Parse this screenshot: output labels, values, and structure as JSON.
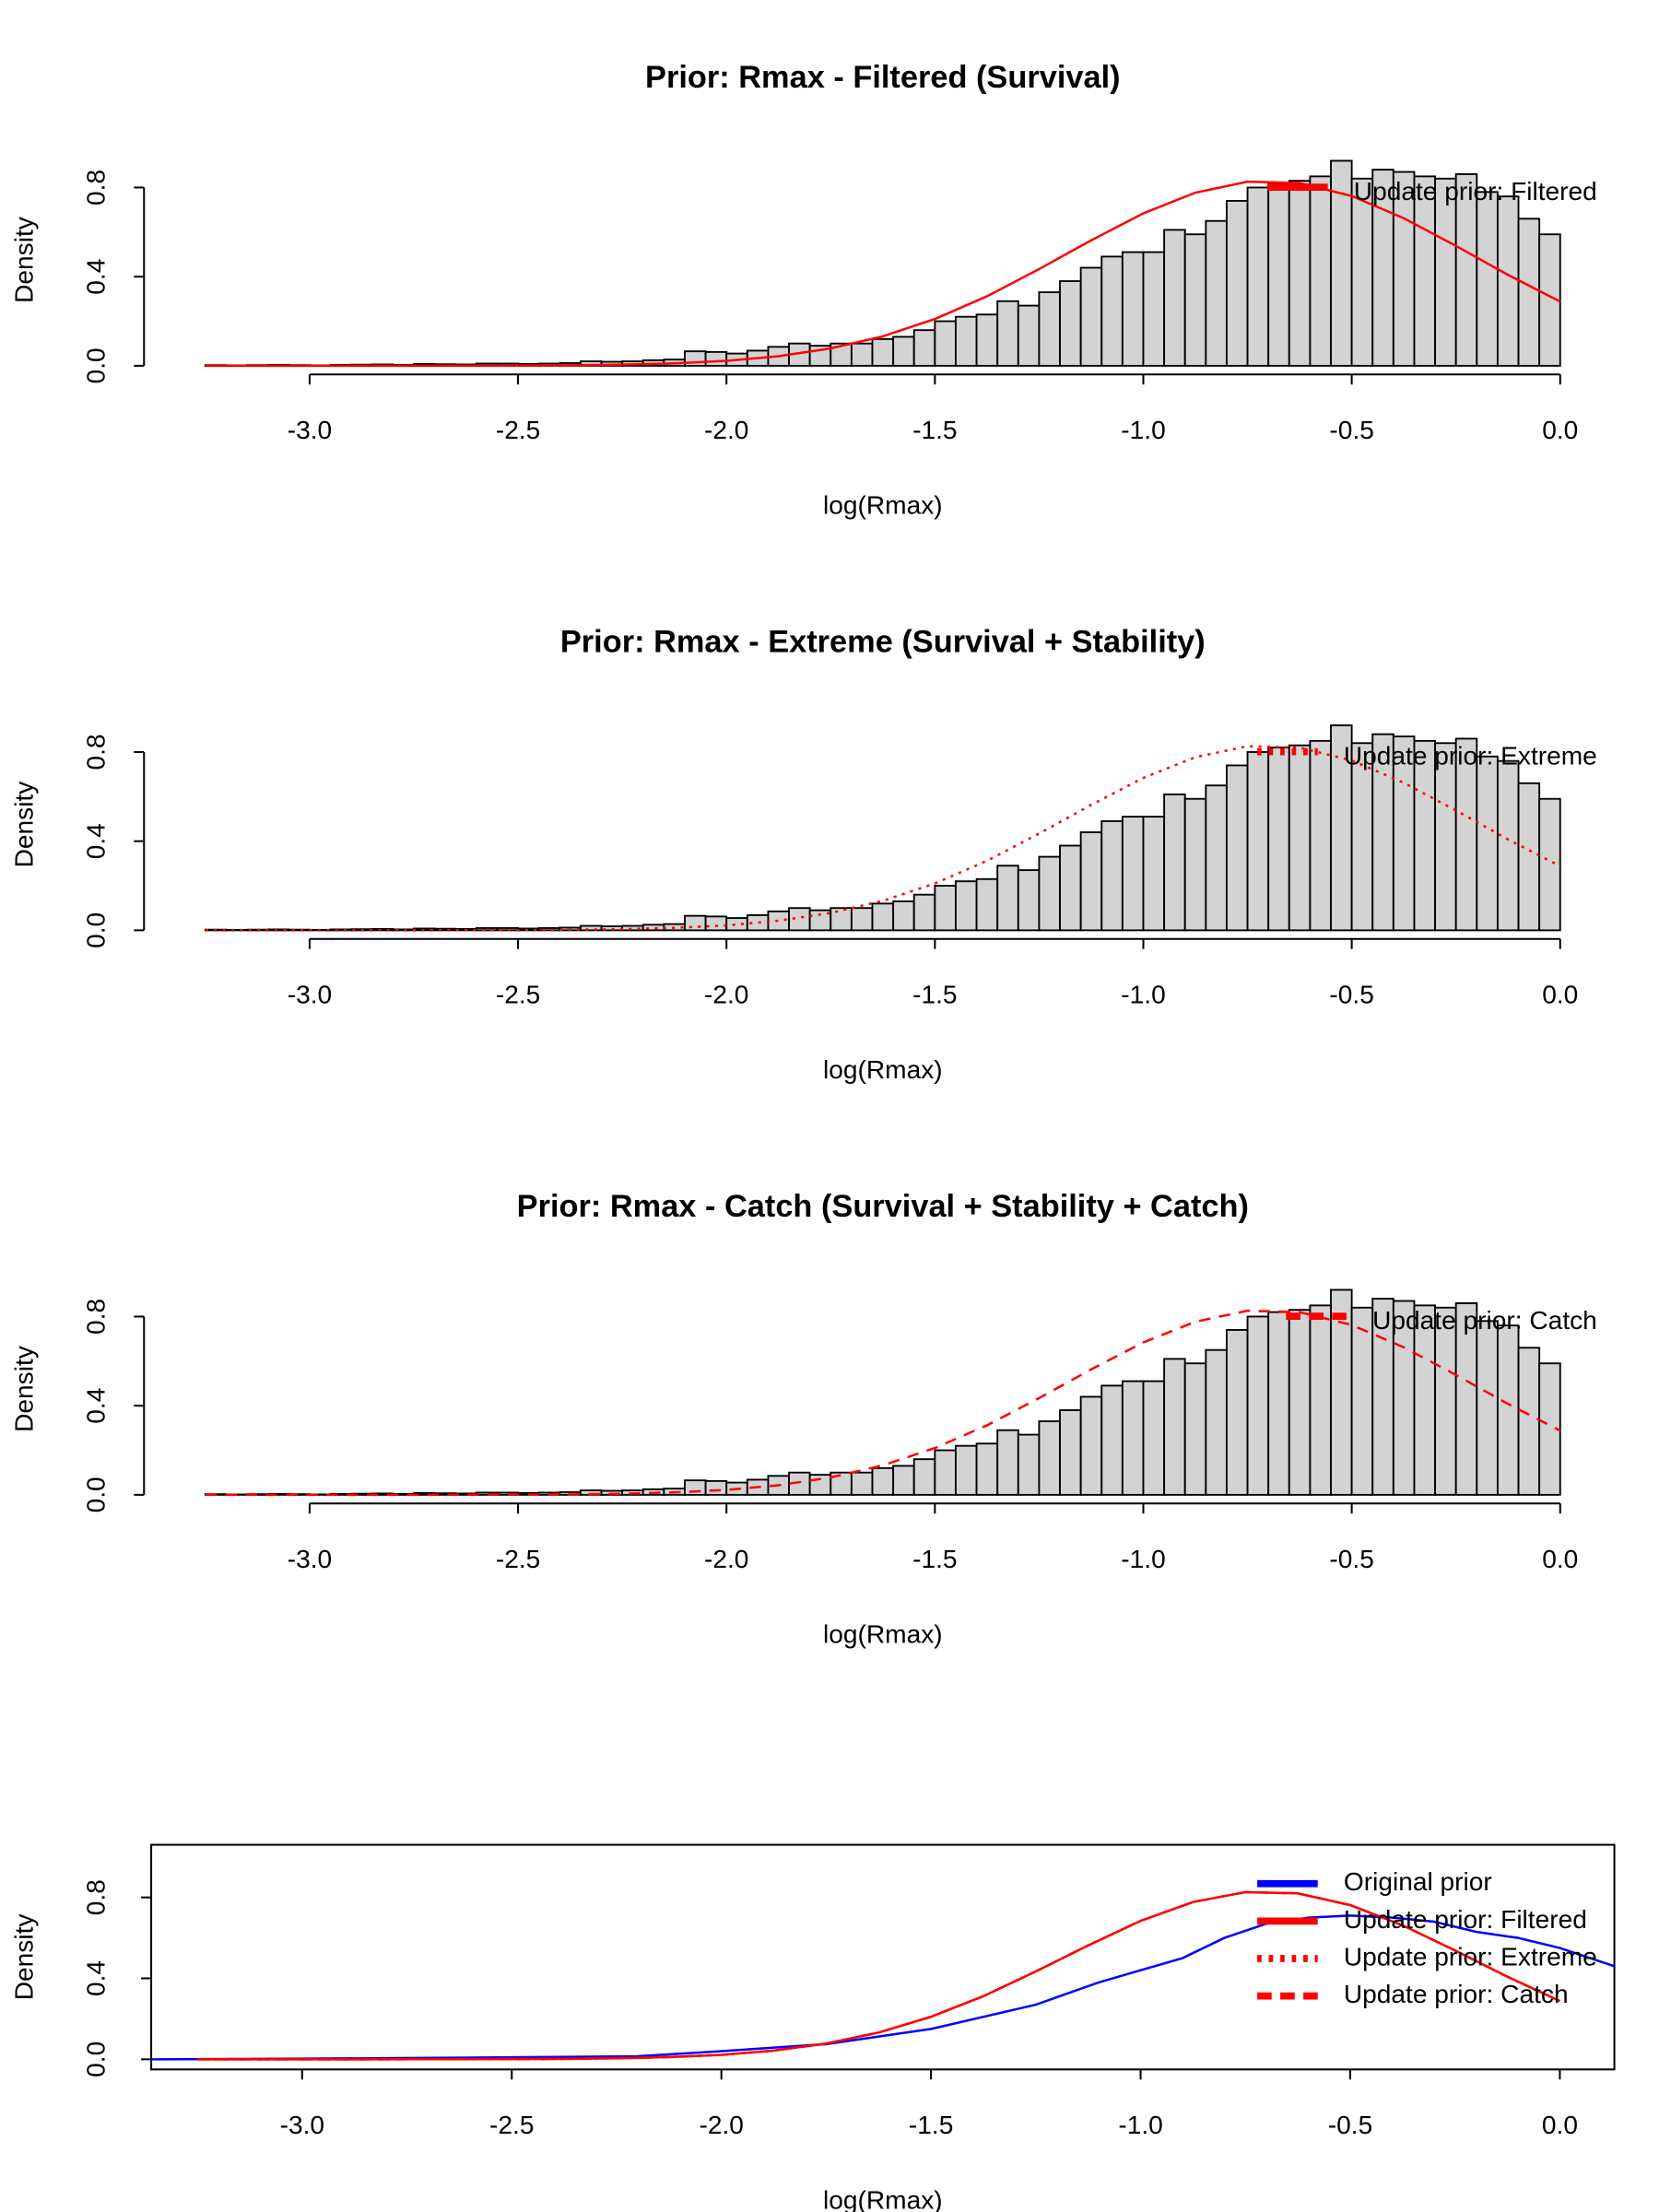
{
  "chart_data": [
    {
      "type": "histogram",
      "title": "Prior: Rmax - Filtered (Survival)",
      "x_label": "log(Rmax)",
      "y_label": "Density",
      "bins": [
        -3.25,
        -3.2,
        -3.15,
        -3.1,
        -3.05,
        -3.0,
        -2.95,
        -2.9,
        -2.85,
        -2.8,
        -2.75,
        -2.7,
        -2.65,
        -2.6,
        -2.55,
        -2.5,
        -2.45,
        -2.4,
        -2.35,
        -2.3,
        -2.25,
        -2.2,
        -2.15,
        -2.1,
        -2.05,
        -2.0,
        -1.95,
        -1.9,
        -1.85,
        -1.8,
        -1.75,
        -1.7,
        -1.65,
        -1.6,
        -1.55,
        -1.5,
        -1.45,
        -1.4,
        -1.35,
        -1.3,
        -1.25,
        -1.2,
        -1.15,
        -1.1,
        -1.05,
        -1.0,
        -0.95,
        -0.9,
        -0.85,
        -0.8,
        -0.75,
        -0.7,
        -0.65,
        -0.6,
        -0.55,
        -0.5,
        -0.45,
        -0.4,
        -0.35,
        -0.3,
        -0.25,
        -0.2,
        -0.15,
        -0.1,
        -0.05,
        0
      ],
      "values": [
        0.003,
        0.002,
        0.003,
        0.004,
        0.003,
        0.002,
        0.004,
        0.005,
        0.006,
        0.004,
        0.008,
        0.007,
        0.006,
        0.01,
        0.01,
        0.008,
        0.01,
        0.012,
        0.02,
        0.018,
        0.02,
        0.025,
        0.028,
        0.065,
        0.062,
        0.055,
        0.068,
        0.085,
        0.1,
        0.09,
        0.1,
        0.1,
        0.12,
        0.13,
        0.16,
        0.2,
        0.22,
        0.23,
        0.29,
        0.27,
        0.33,
        0.38,
        0.44,
        0.49,
        0.51,
        0.51,
        0.61,
        0.59,
        0.65,
        0.74,
        0.8,
        0.82,
        0.83,
        0.85,
        0.92,
        0.84,
        0.88,
        0.87,
        0.85,
        0.84,
        0.86,
        0.78,
        0.76,
        0.66,
        0.59
      ],
      "color": "#d3d3d3",
      "series": [
        {
          "name": "Update prior: Filtered",
          "color": "#ff0000",
          "style": "solid",
          "x": [
            -3.25,
            -3.125,
            -3.0,
            -2.875,
            -2.75,
            -2.625,
            -2.5,
            -2.375,
            -2.25,
            -2.125,
            -2.0,
            -1.875,
            -1.75,
            -1.625,
            -1.5,
            -1.375,
            -1.25,
            -1.125,
            -1.0,
            -0.875,
            -0.75,
            -0.625,
            -0.5,
            -0.375,
            -0.25,
            -0.125,
            0
          ],
          "values": [
            0,
            0,
            0,
            0,
            0.0001,
            0.0003,
            0.001,
            0.002,
            0.005,
            0.011,
            0.022,
            0.043,
            0.078,
            0.132,
            0.21,
            0.312,
            0.434,
            0.563,
            0.684,
            0.777,
            0.826,
            0.82,
            0.762,
            0.662,
            0.538,
            0.408,
            0.288
          ]
        }
      ],
      "xlim": [
        -3.38,
        0.13
      ],
      "ylim": [
        0,
        0.95
      ],
      "xticks": [
        {
          "value": -3,
          "label": "-3.0"
        },
        -2.5,
        {
          "value": -2,
          "label": "-2.0"
        },
        -1.5,
        {
          "value": -1,
          "label": "-1.0"
        },
        -0.5,
        {
          "value": 0,
          "label": "0.0"
        }
      ],
      "yticks": [
        {
          "value": 0,
          "label": "0.0"
        },
        0.4,
        0.8
      ],
      "legend": "topright"
    },
    {
      "type": "histogram",
      "title": "Prior: Rmax - Extreme (Survival + Stability)",
      "x_label": "log(Rmax)",
      "y_label": "Density",
      "bins": [
        -3.25,
        -3.2,
        -3.15,
        -3.1,
        -3.05,
        -3.0,
        -2.95,
        -2.9,
        -2.85,
        -2.8,
        -2.75,
        -2.7,
        -2.65,
        -2.6,
        -2.55,
        -2.5,
        -2.45,
        -2.4,
        -2.35,
        -2.3,
        -2.25,
        -2.2,
        -2.15,
        -2.1,
        -2.05,
        -2.0,
        -1.95,
        -1.9,
        -1.85,
        -1.8,
        -1.75,
        -1.7,
        -1.65,
        -1.6,
        -1.55,
        -1.5,
        -1.45,
        -1.4,
        -1.35,
        -1.3,
        -1.25,
        -1.2,
        -1.15,
        -1.1,
        -1.05,
        -1.0,
        -0.95,
        -0.9,
        -0.85,
        -0.8,
        -0.75,
        -0.7,
        -0.65,
        -0.6,
        -0.55,
        -0.5,
        -0.45,
        -0.4,
        -0.35,
        -0.3,
        -0.25,
        -0.2,
        -0.15,
        -0.1,
        -0.05,
        0
      ],
      "values": [
        0.003,
        0.002,
        0.003,
        0.004,
        0.003,
        0.002,
        0.004,
        0.005,
        0.006,
        0.004,
        0.008,
        0.007,
        0.006,
        0.01,
        0.01,
        0.008,
        0.01,
        0.012,
        0.02,
        0.018,
        0.02,
        0.025,
        0.028,
        0.065,
        0.062,
        0.055,
        0.068,
        0.085,
        0.1,
        0.09,
        0.1,
        0.1,
        0.12,
        0.13,
        0.16,
        0.2,
        0.22,
        0.23,
        0.29,
        0.27,
        0.33,
        0.38,
        0.44,
        0.49,
        0.51,
        0.51,
        0.61,
        0.59,
        0.65,
        0.74,
        0.8,
        0.82,
        0.83,
        0.85,
        0.92,
        0.84,
        0.88,
        0.87,
        0.85,
        0.84,
        0.86,
        0.78,
        0.76,
        0.66,
        0.59
      ],
      "color": "#d3d3d3",
      "series": [
        {
          "name": "Update prior: Extreme",
          "color": "#ff0000",
          "style": "dotted",
          "x": [
            -3.25,
            -3.125,
            -3.0,
            -2.875,
            -2.75,
            -2.625,
            -2.5,
            -2.375,
            -2.25,
            -2.125,
            -2.0,
            -1.875,
            -1.75,
            -1.625,
            -1.5,
            -1.375,
            -1.25,
            -1.125,
            -1.0,
            -0.875,
            -0.75,
            -0.625,
            -0.5,
            -0.375,
            -0.25,
            -0.125,
            0
          ],
          "values": [
            0,
            0,
            0,
            0,
            0.0001,
            0.0003,
            0.001,
            0.002,
            0.005,
            0.011,
            0.022,
            0.043,
            0.078,
            0.132,
            0.21,
            0.312,
            0.434,
            0.563,
            0.684,
            0.777,
            0.826,
            0.82,
            0.762,
            0.662,
            0.538,
            0.408,
            0.288
          ]
        }
      ],
      "xlim": [
        -3.38,
        0.13
      ],
      "ylim": [
        0,
        0.95
      ],
      "xticks": [
        {
          "value": -3,
          "label": "-3.0"
        },
        -2.5,
        {
          "value": -2,
          "label": "-2.0"
        },
        -1.5,
        {
          "value": -1,
          "label": "-1.0"
        },
        -0.5,
        {
          "value": 0,
          "label": "0.0"
        }
      ],
      "yticks": [
        {
          "value": 0,
          "label": "0.0"
        },
        0.4,
        0.8
      ],
      "legend": "topright"
    },
    {
      "type": "histogram",
      "title": "Prior: Rmax - Catch (Survival + Stability + Catch)",
      "x_label": "log(Rmax)",
      "y_label": "Density",
      "bins": [
        -3.25,
        -3.2,
        -3.15,
        -3.1,
        -3.05,
        -3.0,
        -2.95,
        -2.9,
        -2.85,
        -2.8,
        -2.75,
        -2.7,
        -2.65,
        -2.6,
        -2.55,
        -2.5,
        -2.45,
        -2.4,
        -2.35,
        -2.3,
        -2.25,
        -2.2,
        -2.15,
        -2.1,
        -2.05,
        -2.0,
        -1.95,
        -1.9,
        -1.85,
        -1.8,
        -1.75,
        -1.7,
        -1.65,
        -1.6,
        -1.55,
        -1.5,
        -1.45,
        -1.4,
        -1.35,
        -1.3,
        -1.25,
        -1.2,
        -1.15,
        -1.1,
        -1.05,
        -1.0,
        -0.95,
        -0.9,
        -0.85,
        -0.8,
        -0.75,
        -0.7,
        -0.65,
        -0.6,
        -0.55,
        -0.5,
        -0.45,
        -0.4,
        -0.35,
        -0.3,
        -0.25,
        -0.2,
        -0.15,
        -0.1,
        -0.05,
        0
      ],
      "values": [
        0.003,
        0.002,
        0.003,
        0.004,
        0.003,
        0.002,
        0.004,
        0.005,
        0.006,
        0.004,
        0.008,
        0.007,
        0.006,
        0.01,
        0.01,
        0.008,
        0.01,
        0.012,
        0.02,
        0.018,
        0.02,
        0.025,
        0.028,
        0.065,
        0.062,
        0.055,
        0.068,
        0.085,
        0.1,
        0.09,
        0.1,
        0.1,
        0.12,
        0.13,
        0.16,
        0.2,
        0.22,
        0.23,
        0.29,
        0.27,
        0.33,
        0.38,
        0.44,
        0.49,
        0.51,
        0.51,
        0.61,
        0.59,
        0.65,
        0.74,
        0.8,
        0.82,
        0.83,
        0.85,
        0.92,
        0.84,
        0.88,
        0.87,
        0.85,
        0.84,
        0.86,
        0.78,
        0.76,
        0.66,
        0.59
      ],
      "color": "#d3d3d3",
      "series": [
        {
          "name": "Update prior: Catch",
          "color": "#ff0000",
          "style": "dashed",
          "x": [
            -3.25,
            -3.125,
            -3.0,
            -2.875,
            -2.75,
            -2.625,
            -2.5,
            -2.375,
            -2.25,
            -2.125,
            -2.0,
            -1.875,
            -1.75,
            -1.625,
            -1.5,
            -1.375,
            -1.25,
            -1.125,
            -1.0,
            -0.875,
            -0.75,
            -0.625,
            -0.5,
            -0.375,
            -0.25,
            -0.125,
            0
          ],
          "values": [
            0,
            0,
            0,
            0,
            0.0001,
            0.0003,
            0.001,
            0.002,
            0.005,
            0.011,
            0.022,
            0.043,
            0.078,
            0.132,
            0.21,
            0.312,
            0.434,
            0.563,
            0.684,
            0.777,
            0.826,
            0.82,
            0.762,
            0.662,
            0.538,
            0.408,
            0.288
          ]
        }
      ],
      "xlim": [
        -3.38,
        0.13
      ],
      "ylim": [
        0,
        0.95
      ],
      "xticks": [
        {
          "value": -3,
          "label": "-3.0"
        },
        -2.5,
        {
          "value": -2,
          "label": "-2.0"
        },
        -1.5,
        {
          "value": -1,
          "label": "-1.0"
        },
        -0.5,
        {
          "value": 0,
          "label": "0.0"
        }
      ],
      "yticks": [
        {
          "value": 0,
          "label": "0.0"
        },
        0.4,
        0.8
      ],
      "legend": "topright"
    },
    {
      "type": "line",
      "x_label": "log(Rmax)",
      "y_label": "Density",
      "box": true,
      "series": [
        {
          "name": "Original prior",
          "color": "#0000ff",
          "style": "solid",
          "x": [
            -3.36,
            -3.0,
            -2.5,
            -2.2,
            -2.0,
            -1.75,
            -1.5,
            -1.25,
            -1.1,
            -1.0,
            -0.9,
            -0.8,
            -0.7,
            -0.6,
            -0.5,
            -0.4,
            -0.3,
            -0.2,
            -0.1,
            0,
            0.13
          ],
          "values": [
            0,
            0.003,
            0.01,
            0.015,
            0.04,
            0.075,
            0.15,
            0.27,
            0.38,
            0.44,
            0.5,
            0.6,
            0.67,
            0.7,
            0.71,
            0.7,
            0.68,
            0.63,
            0.6,
            0.55,
            0.46
          ]
        },
        {
          "name": "Update prior: Filtered",
          "color": "#ff0000",
          "style": "solid",
          "x": [
            -3.25,
            -3.125,
            -3.0,
            -2.875,
            -2.75,
            -2.625,
            -2.5,
            -2.375,
            -2.25,
            -2.125,
            -2.0,
            -1.875,
            -1.75,
            -1.625,
            -1.5,
            -1.375,
            -1.25,
            -1.125,
            -1.0,
            -0.875,
            -0.75,
            -0.625,
            -0.5,
            -0.375,
            -0.25,
            -0.125,
            0
          ],
          "values": [
            0,
            0,
            0,
            0,
            0.0001,
            0.0003,
            0.001,
            0.002,
            0.005,
            0.011,
            0.022,
            0.043,
            0.078,
            0.132,
            0.21,
            0.312,
            0.434,
            0.563,
            0.684,
            0.777,
            0.826,
            0.82,
            0.762,
            0.662,
            0.538,
            0.408,
            0.288
          ]
        },
        {
          "name": "Update prior: Extreme",
          "color": "#ff0000",
          "style": "dotted",
          "x": [
            -3.25,
            -3.125,
            -3.0,
            -2.875,
            -2.75,
            -2.625,
            -2.5,
            -2.375,
            -2.25,
            -2.125,
            -2.0,
            -1.875,
            -1.75,
            -1.625,
            -1.5,
            -1.375,
            -1.25,
            -1.125,
            -1.0,
            -0.875,
            -0.75,
            -0.625,
            -0.5,
            -0.375,
            -0.25,
            -0.125,
            0
          ],
          "values": [
            0,
            0,
            0,
            0,
            0.0001,
            0.0003,
            0.001,
            0.002,
            0.005,
            0.011,
            0.022,
            0.043,
            0.078,
            0.132,
            0.21,
            0.312,
            0.434,
            0.563,
            0.684,
            0.777,
            0.826,
            0.82,
            0.762,
            0.662,
            0.538,
            0.408,
            0.288
          ]
        },
        {
          "name": "Update prior: Catch",
          "color": "#ff0000",
          "style": "dashed",
          "x": [
            -3.25,
            -3.125,
            -3.0,
            -2.875,
            -2.75,
            -2.625,
            -2.5,
            -2.375,
            -2.25,
            -2.125,
            -2.0,
            -1.875,
            -1.75,
            -1.625,
            -1.5,
            -1.375,
            -1.25,
            -1.125,
            -1.0,
            -0.875,
            -0.75,
            -0.625,
            -0.5,
            -0.375,
            -0.25,
            -0.125,
            0
          ],
          "values": [
            0,
            0,
            0,
            0,
            0.0001,
            0.0003,
            0.001,
            0.002,
            0.005,
            0.011,
            0.022,
            0.043,
            0.078,
            0.132,
            0.21,
            0.312,
            0.434,
            0.563,
            0.684,
            0.777,
            0.826,
            0.82,
            0.762,
            0.662,
            0.538,
            0.408,
            0.288
          ]
        }
      ],
      "xlim": [
        -3.36,
        0.13
      ],
      "ylim": [
        -0.05,
        1.06
      ],
      "xticks": [
        {
          "value": -3,
          "label": "-3.0"
        },
        -2.5,
        {
          "value": -2,
          "label": "-2.0"
        },
        -1.5,
        {
          "value": -1,
          "label": "-1.0"
        },
        -0.5,
        {
          "value": 0,
          "label": "0.0"
        }
      ],
      "yticks": [
        {
          "value": 0,
          "label": "0.0"
        },
        0.4,
        0.8
      ],
      "legend": "topright"
    }
  ]
}
